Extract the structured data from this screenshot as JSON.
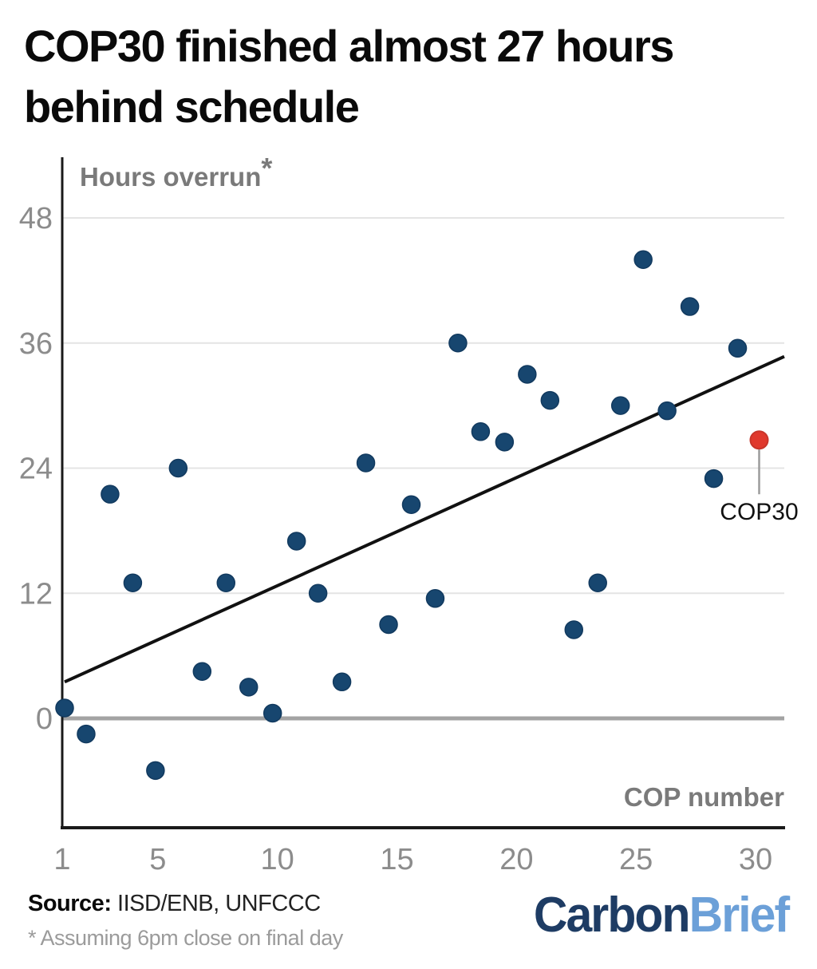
{
  "title": {
    "line1": "COP30 finished almost 27 hours",
    "line2": "behind schedule"
  },
  "chart_data": {
    "type": "scatter",
    "title": "COP30 finished almost 27 hours behind schedule",
    "x_axis": {
      "label": "COP number",
      "ticks": [
        1,
        5,
        10,
        15,
        20,
        25,
        30
      ],
      "range": [
        1,
        30
      ]
    },
    "y_axis": {
      "label": "Hours overrun",
      "label_suffix": "*",
      "ticks": [
        0,
        12,
        24,
        36,
        48
      ],
      "range": [
        -8,
        52
      ],
      "grid": true
    },
    "points": [
      {
        "x": 1.1,
        "hours": 1
      },
      {
        "x": 2.0,
        "hours": -1.5
      },
      {
        "x": 3.0,
        "hours": 21.5
      },
      {
        "x": 3.95,
        "hours": 13
      },
      {
        "x": 4.9,
        "hours": -5
      },
      {
        "x": 5.85,
        "hours": 24
      },
      {
        "x": 6.85,
        "hours": 4.5
      },
      {
        "x": 7.85,
        "hours": 13
      },
      {
        "x": 8.8,
        "hours": 3
      },
      {
        "x": 9.8,
        "hours": 0.5
      },
      {
        "x": 10.8,
        "hours": 17
      },
      {
        "x": 11.7,
        "hours": 12
      },
      {
        "x": 12.7,
        "hours": 3.5
      },
      {
        "x": 13.7,
        "hours": 24.5
      },
      {
        "x": 14.65,
        "hours": 9
      },
      {
        "x": 15.6,
        "hours": 20.5
      },
      {
        "x": 16.6,
        "hours": 11.5
      },
      {
        "x": 17.55,
        "hours": 36
      },
      {
        "x": 18.5,
        "hours": 27.5
      },
      {
        "x": 19.5,
        "hours": 26.5
      },
      {
        "x": 20.45,
        "hours": 33
      },
      {
        "x": 21.4,
        "hours": 30.5
      },
      {
        "x": 22.4,
        "hours": 8.5
      },
      {
        "x": 23.4,
        "hours": 13
      },
      {
        "x": 24.35,
        "hours": 30
      },
      {
        "x": 25.3,
        "hours": 44
      },
      {
        "x": 26.3,
        "hours": 29.5
      },
      {
        "x": 27.25,
        "hours": 39.5
      },
      {
        "x": 28.25,
        "hours": 23
      },
      {
        "x": 29.25,
        "hours": 35.5
      },
      {
        "x": 30.15,
        "hours": 26.7,
        "highlight": true,
        "label": "COP30"
      }
    ],
    "trendline": {
      "x1": 1.1,
      "hours1": 3.5,
      "x2": 31.2,
      "hours2": 34.7
    },
    "annotation": {
      "label": "COP30",
      "x": 30.15,
      "hours": 26.7
    },
    "legend": "none"
  },
  "footer": {
    "source_label": "Source:",
    "source_value": " IISD/ENB, UNFCCC",
    "footnote": "* Assuming 6pm close on final day",
    "logo_carbon": "Carbon",
    "logo_brief": "Brief"
  },
  "colors": {
    "point": "#17466f",
    "point_stroke": "#123a5f",
    "highlight": "#e0392d",
    "highlight_stroke": "#c8352a",
    "trend": "#111111",
    "grid": "#e4e4e4",
    "zero_line": "#a3a3a3",
    "axis": "#1a1a1a",
    "tick_label": "#8c8c8c",
    "axis_title": "#7a7a7a",
    "logo_navy": "#1e3c64",
    "logo_blue": "#6ca0d8"
  }
}
